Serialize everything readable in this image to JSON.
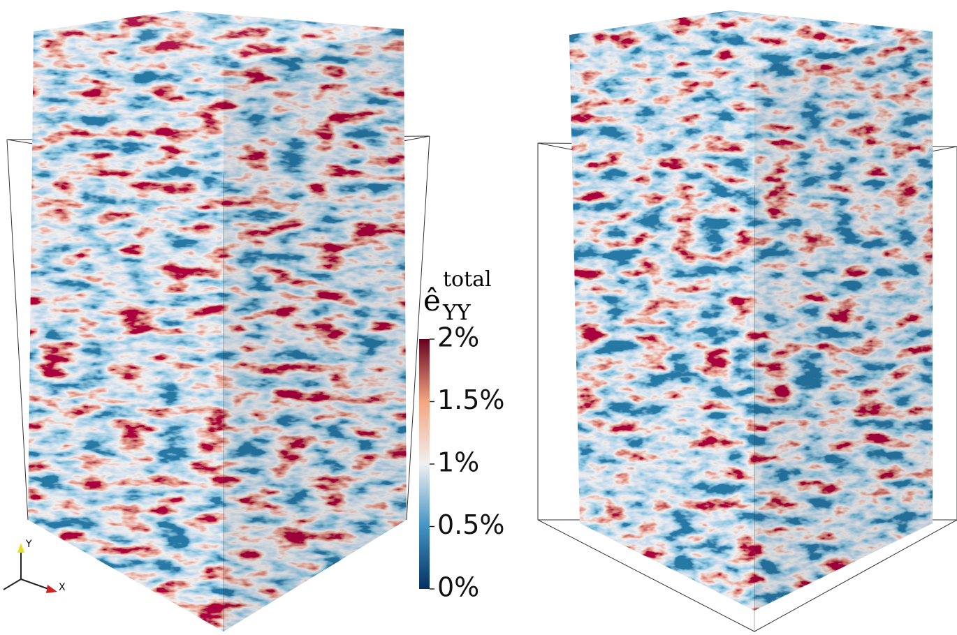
{
  "colorbar": {
    "symbol": "ê",
    "subscript": "YY",
    "superscript": "total",
    "range": [
      0,
      2
    ],
    "ticks": [
      {
        "value": 2,
        "label": "2%"
      },
      {
        "value": 1.5,
        "label": "1.5%"
      },
      {
        "value": 1,
        "label": "1%"
      },
      {
        "value": 0.5,
        "label": "0.5%"
      },
      {
        "value": 0,
        "label": "0%"
      }
    ]
  },
  "axes": {
    "x": "X",
    "y": "Y"
  }
}
